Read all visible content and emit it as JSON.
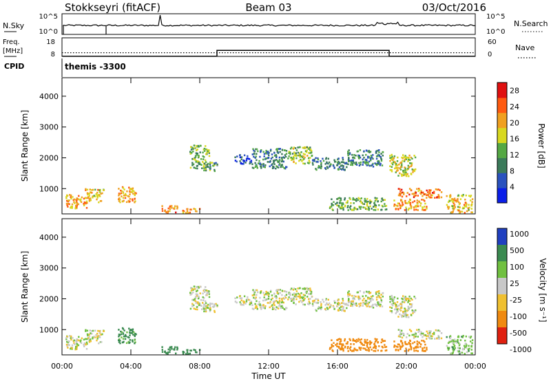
{
  "header": {
    "station": "Stokkseyri (fitACF)",
    "beam": "Beam 03",
    "date": "03/Oct/2016"
  },
  "chart_data": [
    {
      "type": "line",
      "panel": "noise",
      "left_label": "N.Sky",
      "right_label": "N.Search",
      "left_ticks": [
        "10^5",
        "10^0"
      ],
      "right_ticks": [
        "10^5",
        "10^0"
      ]
    },
    {
      "type": "line",
      "panel": "frequency",
      "left_label_top": "Freq.",
      "left_label_bottom": "[MHz]",
      "right_label": "Nave",
      "left_ticks": [
        "18",
        "8"
      ],
      "right_ticks": [
        "60",
        "0"
      ],
      "freq_steps": [
        {
          "t": 0.0,
          "v": 8.5
        },
        {
          "t": 9.0,
          "v": 11.6
        },
        {
          "t": 19.0,
          "v": 8.5
        },
        {
          "t": 24.0,
          "v": 8.5
        }
      ],
      "nave_level": 12
    },
    {
      "type": "text",
      "panel": "cpid",
      "label": "CPID",
      "program": "themis -3300"
    },
    {
      "type": "heatmap",
      "panel": "power",
      "ylabel": "Slant Range [km]",
      "ylim": [
        180,
        4600
      ],
      "yticks": [
        "1000",
        "2000",
        "3000",
        "4000"
      ],
      "colorbar": {
        "label": "Power [dB]",
        "ticks": [
          "4",
          "8",
          "12",
          "16",
          "20",
          "24",
          "28"
        ],
        "range": [
          0,
          30
        ]
      }
    },
    {
      "type": "heatmap",
      "panel": "velocity",
      "ylabel": "Slant Range [km]",
      "ylim": [
        180,
        4600
      ],
      "yticks": [
        "1000",
        "2000",
        "3000",
        "4000"
      ],
      "xlabel": "Time UT",
      "xticks": [
        "00:00",
        "04:00",
        "08:00",
        "12:00",
        "16:00",
        "20:00",
        "00:00"
      ],
      "xlim": [
        0,
        24
      ],
      "colorbar": {
        "label": "Velocity [m s⁻¹]",
        "ticks": [
          "1000",
          "500",
          "100",
          "25",
          "-25",
          "-100",
          "-500",
          "-1000"
        ]
      }
    }
  ],
  "echo_regions": [
    {
      "t0": 0.2,
      "t1": 1.5,
      "r0": 350,
      "r1": 800,
      "p": 22,
      "v": 0
    },
    {
      "t0": 1.3,
      "t1": 2.4,
      "r0": 550,
      "r1": 1000,
      "p": 20,
      "v": 0
    },
    {
      "t0": 3.2,
      "t1": 4.3,
      "r0": 550,
      "r1": 1050,
      "p": 22,
      "v": 150
    },
    {
      "t0": 5.7,
      "t1": 6.7,
      "r0": 220,
      "r1": 450,
      "p": 24,
      "v": 180
    },
    {
      "t0": 6.9,
      "t1": 8.0,
      "r0": 200,
      "r1": 350,
      "p": 22,
      "v": 250
    },
    {
      "t0": 7.4,
      "t1": 8.6,
      "r0": 1650,
      "r1": 2400,
      "p": 14,
      "v": 0
    },
    {
      "t0": 8.2,
      "t1": 9.0,
      "r0": 1550,
      "r1": 1850,
      "p": 12,
      "v": 0
    },
    {
      "t0": 10.0,
      "t1": 11.0,
      "r0": 1800,
      "r1": 2100,
      "p": 6,
      "v": 0
    },
    {
      "t0": 11.0,
      "t1": 13.0,
      "r0": 1650,
      "r1": 2300,
      "p": 10,
      "v": 0
    },
    {
      "t0": 13.0,
      "t1": 14.5,
      "r0": 1800,
      "r1": 2350,
      "p": 16,
      "v": 0
    },
    {
      "t0": 14.5,
      "t1": 16.5,
      "r0": 1600,
      "r1": 2000,
      "p": 10,
      "v": 0
    },
    {
      "t0": 16.5,
      "t1": 18.6,
      "r0": 1700,
      "r1": 2250,
      "p": 10,
      "v": 0
    },
    {
      "t0": 15.5,
      "t1": 18.8,
      "r0": 300,
      "r1": 700,
      "p": 14,
      "v": -300
    },
    {
      "t0": 19.0,
      "t1": 20.5,
      "r0": 1400,
      "r1": 2100,
      "p": 18,
      "v": 0
    },
    {
      "t0": 19.5,
      "t1": 22.0,
      "r0": 700,
      "r1": 1000,
      "p": 24,
      "v": 0
    },
    {
      "t0": 19.2,
      "t1": 21.2,
      "r0": 300,
      "r1": 650,
      "p": 22,
      "v": -400
    },
    {
      "t0": 22.3,
      "t1": 23.8,
      "r0": 200,
      "r1": 800,
      "p": 20,
      "v": 60
    }
  ]
}
